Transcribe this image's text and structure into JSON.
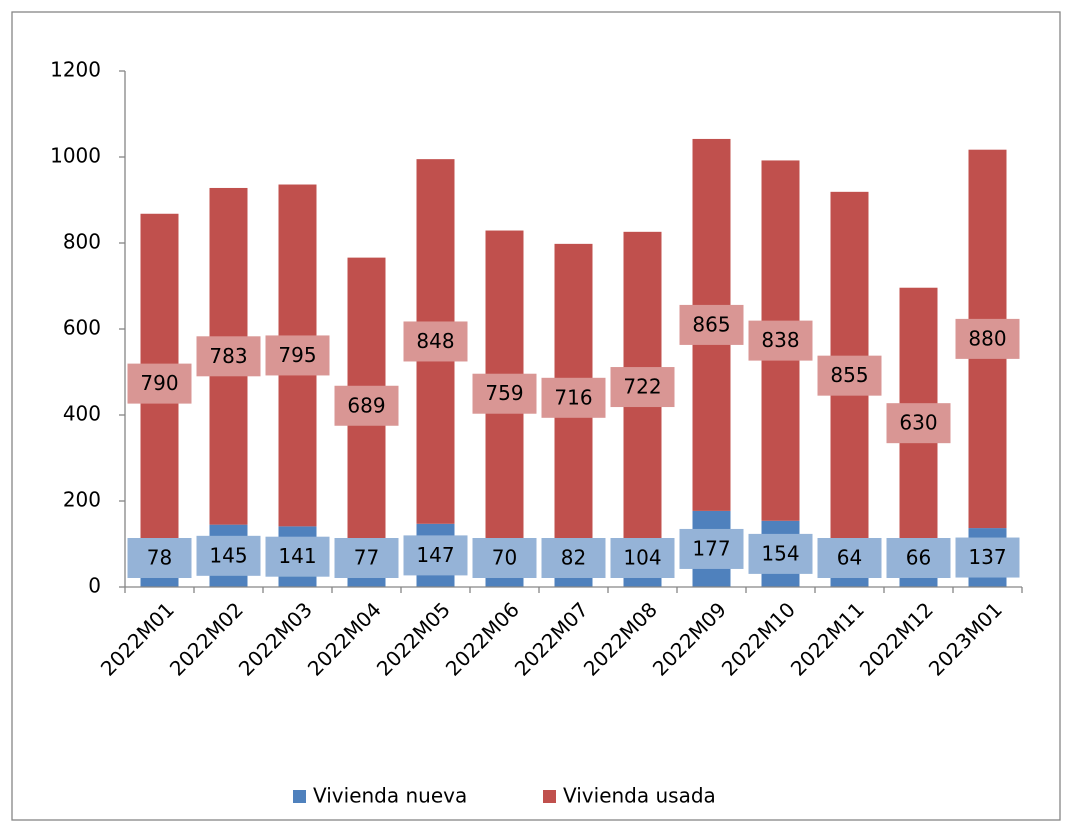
{
  "chart_data": {
    "type": "bar",
    "stacked": true,
    "categories": [
      "2022M01",
      "2022M02",
      "2022M03",
      "2022M04",
      "2022M05",
      "2022M06",
      "2022M07",
      "2022M08",
      "2022M09",
      "2022M10",
      "2022M11",
      "2022M12",
      "2023M01"
    ],
    "series": [
      {
        "name": "Vivienda nueva",
        "color": "#4f81bd",
        "label_color": "#95b3d7",
        "values": [
          78,
          145,
          141,
          77,
          147,
          70,
          82,
          104,
          177,
          154,
          64,
          66,
          137
        ]
      },
      {
        "name": "Vivienda usada",
        "color": "#c0504d",
        "label_color": "#d99694",
        "values": [
          790,
          783,
          795,
          689,
          848,
          759,
          716,
          722,
          865,
          838,
          855,
          630,
          880
        ]
      }
    ],
    "ylim": [
      0,
      1200
    ],
    "yticks": [
      0,
      200,
      400,
      600,
      800,
      1000,
      1200
    ],
    "grid": false,
    "legend": "bottom"
  }
}
